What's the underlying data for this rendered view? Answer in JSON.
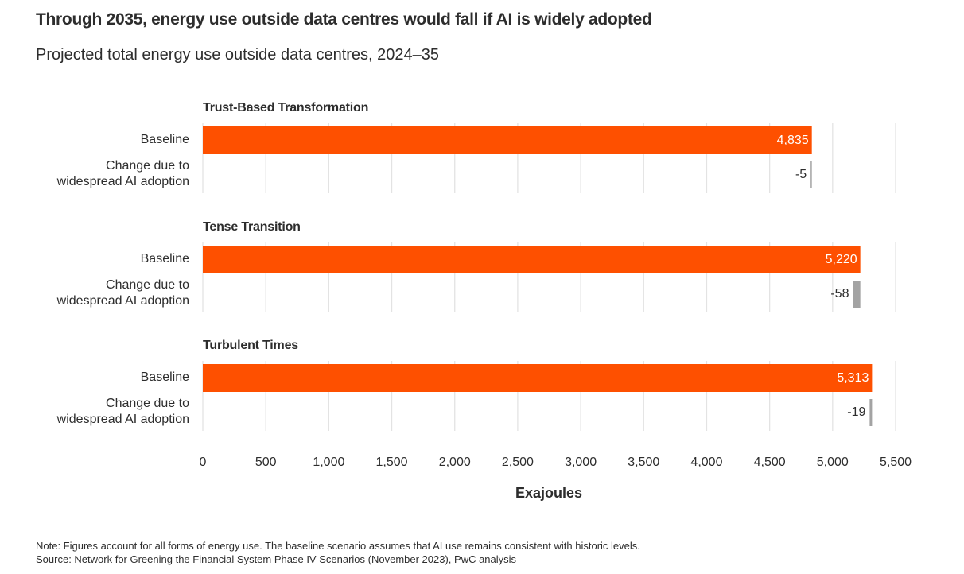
{
  "header": {
    "title": "Through 2035, energy use outside data centres would fall if AI is widely adopted",
    "subtitle": "Projected total energy use outside data centres, 2024–35"
  },
  "footer": {
    "note": "Note: Figures account for all forms of energy use. The baseline scenario assumes that AI use remains consistent with historic levels.",
    "source": "Source: Network for Greening the Financial System Phase IV Scenarios (November 2023), PwC analysis"
  },
  "chart_data": {
    "type": "bar",
    "orientation": "horizontal",
    "title": "Through 2035, energy use outside data centres would fall if AI is widely adopted",
    "subtitle": "Projected total energy use outside data centres, 2024–35",
    "xlabel": "Exajoules",
    "xlim": [
      0,
      5500
    ],
    "xticks": [
      0,
      500,
      1000,
      1500,
      2000,
      2500,
      3000,
      3500,
      4000,
      4500,
      5000,
      5500
    ],
    "xtick_labels": [
      "0",
      "500",
      "1,000",
      "1,500",
      "2,000",
      "2,500",
      "3,000",
      "3,500",
      "4,000",
      "4,500",
      "5,000",
      "5,500"
    ],
    "grid": true,
    "row_labels": {
      "baseline": "Baseline",
      "change": [
        "Change due to",
        "widespread AI adoption"
      ]
    },
    "groups": [
      {
        "name": "Trust-Based Transformation",
        "baseline": 4835,
        "baseline_label": "4,835",
        "change": -5,
        "change_label": "-5"
      },
      {
        "name": "Tense Transition",
        "baseline": 5220,
        "baseline_label": "5,220",
        "change": -58,
        "change_label": "-58"
      },
      {
        "name": "Turbulent Times",
        "baseline": 5313,
        "baseline_label": "5,313",
        "change": -19,
        "change_label": "-19"
      }
    ],
    "colors": {
      "baseline": "#fe5000",
      "change": "#a3a3a3",
      "grid": "#e3e3e3"
    }
  }
}
